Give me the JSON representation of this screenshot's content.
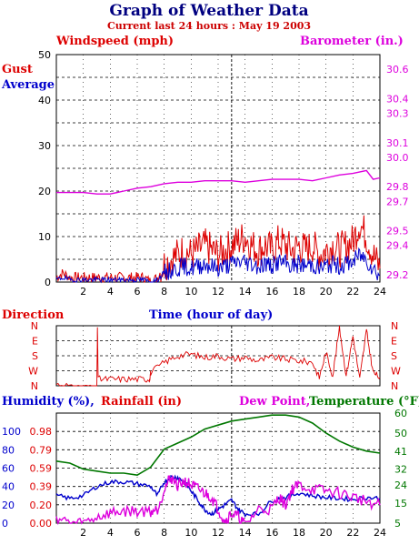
{
  "header": {
    "title": "Graph of Weather Data",
    "subtitle": "Current last 24 hours : May 19 2003"
  },
  "colors": {
    "title": "#000080",
    "subtitle": "#cc0000",
    "gust": "#dd0000",
    "average": "#0000cc",
    "barometer": "#dd00dd",
    "direction": "#dd0000",
    "humidity": "#0000cc",
    "rainfall": "#dd0000",
    "dewpoint": "#dd00dd",
    "temperature": "#007700",
    "grid": "#000000"
  },
  "chart_data": [
    {
      "type": "line",
      "title": "",
      "left_axis_label": "Windspeed (mph)",
      "right_axis_label": "Barometer (in.)",
      "xlabel": "Time (hour of day)",
      "xlim": [
        0,
        24
      ],
      "x_ticks": [
        "2",
        "4",
        "6",
        "8",
        "10",
        "12",
        "14",
        "16",
        "18",
        "20",
        "22",
        "24"
      ],
      "ylim_left": [
        0,
        50
      ],
      "left_ticks": [
        "0",
        "10",
        "20",
        "30",
        "40",
        "50"
      ],
      "ylim_right": [
        29.15,
        30.7
      ],
      "right_ticks": [
        "29.2",
        "29.4",
        "29.5",
        "29.7",
        "29.8",
        "30.0",
        "30.1",
        "30.3",
        "30.4",
        "30.6"
      ],
      "grid": true,
      "series": [
        {
          "name": "Gust",
          "axis": "left",
          "x": [
            0,
            0.5,
            1,
            1.5,
            2,
            2.5,
            3,
            3.5,
            4,
            4.5,
            5,
            5.5,
            6,
            6.5,
            7,
            7.5,
            8,
            8.5,
            9,
            9.5,
            10,
            10.5,
            11,
            11.5,
            12,
            12.5,
            13,
            13.5,
            14,
            14.5,
            15,
            15.5,
            16,
            16.5,
            17,
            17.5,
            18,
            18.5,
            19,
            19.5,
            20,
            20.5,
            21,
            21.5,
            22,
            22.5,
            23,
            23.5,
            24
          ],
          "values": [
            1,
            2,
            1,
            1,
            1,
            1,
            1,
            1,
            1,
            1,
            1,
            1,
            1,
            1,
            0,
            1,
            4,
            5,
            6,
            7,
            6,
            7,
            8,
            7,
            6,
            7,
            8,
            9,
            10,
            8,
            7,
            8,
            7,
            9,
            8,
            7,
            8,
            7,
            8,
            6,
            7,
            8,
            7,
            8,
            9,
            13,
            10,
            6,
            3
          ]
        },
        {
          "name": "Average",
          "axis": "left",
          "x": [
            0,
            0.5,
            1,
            1.5,
            2,
            2.5,
            3,
            3.5,
            4,
            4.5,
            5,
            5.5,
            6,
            6.5,
            7,
            7.5,
            8,
            8.5,
            9,
            9.5,
            10,
            10.5,
            11,
            11.5,
            12,
            12.5,
            13,
            13.5,
            14,
            14.5,
            15,
            15.5,
            16,
            16.5,
            17,
            17.5,
            18,
            18.5,
            19,
            19.5,
            20,
            20.5,
            21,
            21.5,
            22,
            22.5,
            23,
            23.5,
            24
          ],
          "values": [
            0.5,
            1,
            0.5,
            0.5,
            0.5,
            0.5,
            0.5,
            0.5,
            0.5,
            0.5,
            0.5,
            0.5,
            0.5,
            0.5,
            0,
            0.5,
            2,
            2.5,
            3,
            3.5,
            3,
            3.5,
            4,
            3.5,
            3,
            3.5,
            4,
            4.5,
            4.5,
            4,
            3.5,
            4,
            3.5,
            4.5,
            4,
            3.5,
            4,
            3.5,
            4,
            3,
            3.5,
            4,
            3.5,
            4,
            4.5,
            6,
            5,
            3,
            1.5
          ]
        },
        {
          "name": "Barometer",
          "axis": "right",
          "x": [
            0,
            1,
            2,
            3,
            4,
            5,
            6,
            7,
            8,
            9,
            10,
            11,
            12,
            13,
            14,
            15,
            16,
            17,
            18,
            19,
            20,
            21,
            22,
            23,
            23.5,
            24
          ],
          "values": [
            29.76,
            29.76,
            29.76,
            29.75,
            29.75,
            29.77,
            29.79,
            29.8,
            29.82,
            29.83,
            29.83,
            29.84,
            29.84,
            29.84,
            29.83,
            29.84,
            29.85,
            29.85,
            29.85,
            29.84,
            29.86,
            29.88,
            29.89,
            29.91,
            29.85,
            29.86
          ]
        }
      ]
    },
    {
      "type": "scatter",
      "title": "",
      "ylabel": "Direction",
      "xlim": [
        0,
        24
      ],
      "categories": [
        "N",
        "W",
        "S",
        "E",
        "N"
      ],
      "ylim": [
        0,
        360
      ],
      "grid": true,
      "series": [
        {
          "name": "Direction",
          "x": [
            0,
            1,
            2,
            3,
            3.05,
            3.1,
            4,
            5,
            6,
            6.9,
            7,
            8,
            9,
            10,
            11,
            12,
            13,
            14,
            15,
            16,
            17,
            18,
            19,
            19.5,
            20,
            20.5,
            21,
            21.5,
            22,
            22.5,
            23,
            23.5,
            24
          ],
          "values": [
            10,
            0,
            0,
            0,
            350,
            40,
            40,
            40,
            40,
            40,
            80,
            140,
            180,
            190,
            170,
            180,
            160,
            170,
            150,
            170,
            160,
            150,
            140,
            50,
            200,
            60,
            350,
            60,
            300,
            40,
            330,
            80,
            50
          ]
        }
      ]
    },
    {
      "type": "line",
      "title": "",
      "axis_labels": [
        "Humidity (%),",
        "Rainfall (in)",
        "Dew Point,",
        "Temperature (°F)"
      ],
      "xlim": [
        0,
        24
      ],
      "x_ticks": [
        "2",
        "4",
        "6",
        "8",
        "10",
        "12",
        "14",
        "16",
        "18",
        "20",
        "22",
        "24"
      ],
      "humidity_ticks": [
        "0",
        "20",
        "40",
        "60",
        "80",
        "100"
      ],
      "rain_ticks": [
        "0.00",
        "0.20",
        "0.39",
        "0.59",
        "0.79",
        "0.98"
      ],
      "temp_ticks": [
        "5",
        "15",
        "24",
        "32",
        "41",
        "50",
        "60"
      ],
      "ylim_humidity": [
        0,
        120
      ],
      "ylim_temp": [
        5,
        60
      ],
      "grid": true,
      "series": [
        {
          "name": "Humidity",
          "axis": "humidity",
          "x": [
            0,
            1,
            2,
            3,
            4,
            5,
            6,
            7,
            7.5,
            8,
            8.5,
            9,
            9.5,
            10,
            10.5,
            11,
            11.5,
            12,
            12.5,
            13,
            13.5,
            14,
            15,
            16,
            17,
            18,
            19,
            20,
            21,
            22,
            23,
            24
          ],
          "values": [
            30,
            27,
            30,
            40,
            45,
            45,
            43,
            40,
            30,
            45,
            50,
            50,
            45,
            35,
            25,
            15,
            10,
            15,
            20,
            25,
            15,
            10,
            10,
            25,
            28,
            33,
            30,
            28,
            27,
            26,
            28,
            27
          ]
        },
        {
          "name": "Dew Point",
          "axis": "temp",
          "x": [
            0,
            1,
            2,
            3,
            4,
            5,
            6,
            7,
            7.5,
            8,
            8.5,
            9,
            9.5,
            10,
            10.5,
            11,
            11.5,
            12,
            12.5,
            13,
            13.5,
            14,
            15,
            16,
            16.5,
            17,
            17.5,
            18,
            19,
            20,
            21,
            22,
            23,
            24
          ],
          "values": [
            8,
            5,
            5,
            8,
            10,
            11,
            11,
            11,
            12,
            22,
            28,
            24,
            26,
            24,
            22,
            20,
            18,
            12,
            6,
            10,
            8,
            4,
            12,
            12,
            18,
            14,
            22,
            24,
            22,
            21,
            20,
            18,
            16,
            14
          ]
        },
        {
          "name": "Temperature",
          "axis": "temp",
          "x": [
            0,
            1,
            2,
            3,
            4,
            5,
            6,
            7,
            8,
            9,
            10,
            11,
            12,
            13,
            14,
            15,
            16,
            17,
            18,
            19,
            20,
            21,
            22,
            23,
            24
          ],
          "values": [
            36,
            35,
            32,
            31,
            30,
            30,
            29,
            33,
            42,
            45,
            48,
            52,
            54,
            56,
            57,
            58,
            59,
            59,
            58,
            55,
            50,
            46,
            43,
            41,
            40
          ]
        }
      ]
    }
  ],
  "labels": {
    "windspeed": "Windspeed (mph)",
    "barometer": "Barometer (in.)",
    "gust": "Gust",
    "average": "Average",
    "direction": "Direction",
    "time": "Time (hour of day)",
    "humidity": "Humidity (%),",
    "rainfall": "Rainfall (in)",
    "dewpoint": "Dew Point,",
    "temperature": "Temperature (°F)"
  }
}
